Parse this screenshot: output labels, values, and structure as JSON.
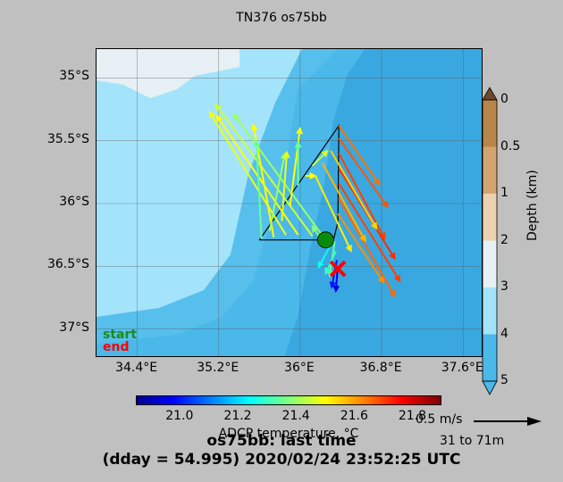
{
  "chart_data": {
    "type": "map",
    "title": "TN376 os75bb",
    "x_ticks": [
      "34.4°E",
      "35.2°E",
      "36°E",
      "36.8°E",
      "37.6°E"
    ],
    "y_ticks": [
      "35°S",
      "35.5°S",
      "36°S",
      "36.5°S",
      "37°S"
    ],
    "xlim": [
      34.0,
      37.8
    ],
    "ylim": [
      -37.23,
      -34.77
    ],
    "legend": {
      "start": "start",
      "end": "end",
      "start_color": "#1a8a1a",
      "end_color": "#ff0000"
    },
    "start_point": {
      "lon": 36.25,
      "lat": -36.29
    },
    "end_point": {
      "lon": 36.37,
      "lat": -36.52
    },
    "track": [
      [
        35.6,
        -36.29
      ],
      [
        36.25,
        -36.29
      ],
      [
        36.33,
        -36.28
      ],
      [
        36.37,
        -36.15
      ],
      [
        36.38,
        -35.38
      ],
      [
        35.6,
        -36.29
      ]
    ],
    "vectors": [
      {
        "lon": 36.25,
        "lat": -36.29,
        "dlon": -0.9,
        "dlat": 1.0,
        "temp": 21.4
      },
      {
        "lon": 36.12,
        "lat": -36.26,
        "dlon": -0.95,
        "dlat": 1.05,
        "temp": 21.45
      },
      {
        "lon": 35.98,
        "lat": -36.25,
        "dlon": -0.8,
        "dlat": 0.95,
        "temp": 21.5
      },
      {
        "lon": 35.86,
        "lat": -36.25,
        "dlon": -0.75,
        "dlat": 0.98,
        "temp": 21.48
      },
      {
        "lon": 35.74,
        "lat": -36.27,
        "dlon": -0.2,
        "dlat": 0.9,
        "temp": 21.5
      },
      {
        "lon": 35.62,
        "lat": -36.28,
        "dlon": -0.05,
        "dlat": 0.78,
        "temp": 21.35
      },
      {
        "lon": 35.7,
        "lat": -36.22,
        "dlon": 0.15,
        "dlat": 0.62,
        "temp": 21.4
      },
      {
        "lon": 35.82,
        "lat": -36.14,
        "dlon": 0.05,
        "dlat": 0.55,
        "temp": 21.48
      },
      {
        "lon": 35.9,
        "lat": -36.02,
        "dlon": 0.1,
        "dlat": 0.62,
        "temp": 21.5
      },
      {
        "lon": 35.98,
        "lat": -35.86,
        "dlon": 0.0,
        "dlat": 0.35,
        "temp": 21.35
      },
      {
        "lon": 36.05,
        "lat": -35.78,
        "dlon": 0.1,
        "dlat": 0.0,
        "temp": 21.5
      },
      {
        "lon": 36.12,
        "lat": -35.7,
        "dlon": 0.15,
        "dlat": 0.12,
        "temp": 21.45
      },
      {
        "lon": 36.38,
        "lat": -35.38,
        "dlon": 0.4,
        "dlat": -0.47,
        "temp": 21.65
      },
      {
        "lon": 36.38,
        "lat": -35.48,
        "dlon": 0.48,
        "dlat": -0.55,
        "temp": 21.68
      },
      {
        "lon": 36.38,
        "lat": -35.6,
        "dlon": 0.45,
        "dlat": -0.68,
        "temp": 21.7
      },
      {
        "lon": 36.38,
        "lat": -35.72,
        "dlon": 0.55,
        "dlat": -0.72,
        "temp": 21.72
      },
      {
        "lon": 36.38,
        "lat": -35.84,
        "dlon": 0.6,
        "dlat": -0.78,
        "temp": 21.7
      },
      {
        "lon": 36.38,
        "lat": -35.96,
        "dlon": 0.55,
        "dlat": -0.78,
        "temp": 21.66
      },
      {
        "lon": 36.37,
        "lat": -36.08,
        "dlon": 0.45,
        "dlat": -0.55,
        "temp": 21.62
      },
      {
        "lon": 36.3,
        "lat": -35.58,
        "dlon": 0.45,
        "dlat": -0.62,
        "temp": 21.55
      },
      {
        "lon": 36.22,
        "lat": -35.68,
        "dlon": 0.42,
        "dlat": -0.62,
        "temp": 21.58
      },
      {
        "lon": 36.15,
        "lat": -35.78,
        "dlon": 0.35,
        "dlat": -0.6,
        "temp": 21.52
      },
      {
        "lon": 36.34,
        "lat": -36.3,
        "dlon": -0.05,
        "dlat": -0.28,
        "temp": 21.35
      },
      {
        "lon": 36.35,
        "lat": -36.38,
        "dlon": -0.1,
        "dlat": -0.18,
        "temp": 21.3
      },
      {
        "lon": 36.36,
        "lat": -36.45,
        "dlon": -0.05,
        "dlat": -0.22,
        "temp": 21.0
      },
      {
        "lon": 36.37,
        "lat": -36.5,
        "dlon": -0.02,
        "dlat": -0.2,
        "temp": 20.95
      },
      {
        "lon": 36.3,
        "lat": -36.33,
        "dlon": -0.12,
        "dlat": -0.18,
        "temp": 21.25
      },
      {
        "lon": 36.2,
        "lat": -36.28,
        "dlon": -0.08,
        "dlat": 0.1,
        "temp": 21.38
      }
    ],
    "colorbar": {
      "label": "ADCP temperature, °C",
      "ticks": [
        "21.0",
        "21.2",
        "21.4",
        "21.6",
        "21.8"
      ],
      "range": [
        20.85,
        21.9
      ]
    },
    "depth_colorbar": {
      "label": "Depth (km)",
      "ticks": [
        "0",
        "0.5",
        "1",
        "2",
        "3",
        "4",
        "5"
      ],
      "colors": [
        "#b8864a",
        "#d2a471",
        "#ecd1b1",
        "#e6f0f5",
        "#a4e4fb",
        "#4bb8ea"
      ]
    },
    "scale_label": "0.5 m/s",
    "depth_range": "31 to 71m"
  },
  "footer": {
    "line1": "os75bb: last time",
    "line2": "(dday = 54.995) 2020/02/24 23:52:25 UTC"
  }
}
